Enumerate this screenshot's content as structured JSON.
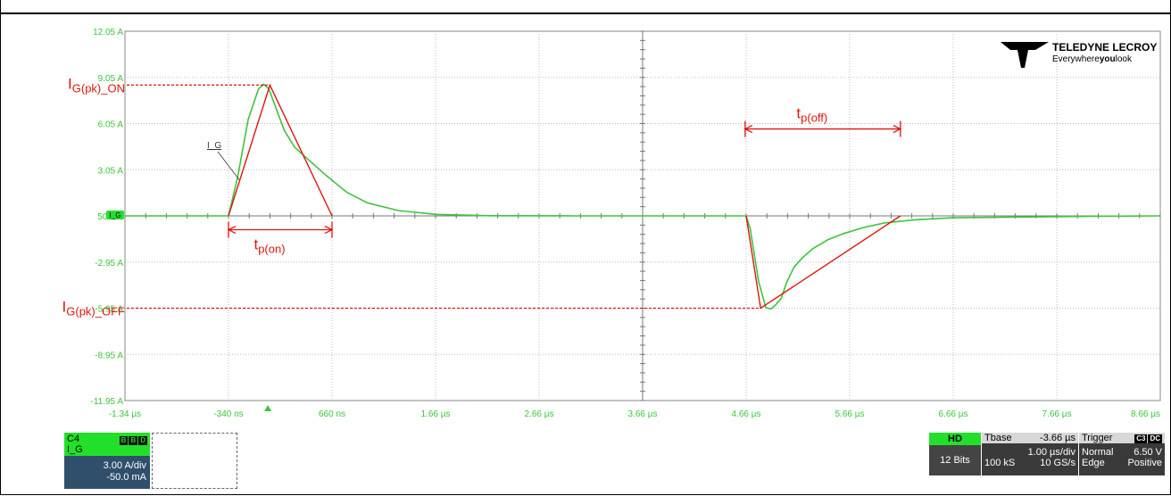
{
  "chart_data": {
    "type": "line",
    "title": "",
    "xlabel": "",
    "ylabel": "",
    "xlim": [
      -1.34,
      8.66
    ],
    "ylim": [
      -11.95,
      12.05
    ],
    "x_tick_labels": [
      "-1.34 µs",
      "-340 ns",
      "660 ns",
      "1.66 µs",
      "2.66 µs",
      "3.66 µs",
      "4.66 µs",
      "5.66 µs",
      "6.66 µs",
      "7.66 µs",
      "8.66 µs"
    ],
    "y_tick_labels": [
      "12.05 A",
      "9.05 A",
      "6.05 A",
      "3.05 A",
      "50 mA",
      "-2.95 A",
      "-5.95 A",
      "-8.95 A",
      "-11.95 A"
    ],
    "series": [
      {
        "name": "I_G",
        "color": "#3cc43c",
        "x": [
          -1.34,
          -0.6,
          -0.34,
          -0.25,
          -0.15,
          -0.05,
          0.0,
          0.05,
          0.1,
          0.2,
          0.3,
          0.45,
          0.6,
          0.8,
          1.0,
          1.3,
          1.66,
          2.2,
          3.0,
          4.0,
          4.66,
          4.7,
          4.78,
          4.85,
          4.9,
          4.95,
          5.0,
          5.05,
          5.12,
          5.2,
          5.3,
          5.45,
          5.6,
          5.8,
          6.0,
          6.3,
          6.66,
          7.2,
          8.0,
          8.66
        ],
        "y": [
          0.05,
          0.05,
          0.05,
          2.6,
          6.3,
          8.3,
          8.6,
          8.3,
          7.4,
          5.6,
          4.5,
          3.6,
          2.7,
          1.6,
          0.9,
          0.4,
          0.15,
          0.06,
          0.05,
          0.05,
          0.05,
          -0.8,
          -4.2,
          -5.9,
          -6.0,
          -5.7,
          -5.3,
          -4.3,
          -3.3,
          -2.7,
          -2.1,
          -1.5,
          -1.1,
          -0.7,
          -0.4,
          -0.2,
          -0.07,
          -0.03,
          0.02,
          0.05
        ]
      }
    ],
    "annotations": {
      "color": "#e0140c",
      "ig_pk_on": {
        "label": "I",
        "sub": "G(pk)_ON",
        "value": 8.55,
        "x_end": 0.06
      },
      "ig_pk_off": {
        "label": "I",
        "sub": "G(pk)_OFF",
        "value": -5.95,
        "x_end": 4.8
      },
      "tp_on": {
        "label": "t",
        "sub": "p(on)",
        "x_start": -0.34,
        "x_end": 0.66,
        "y": -0.85
      },
      "tp_off": {
        "label": "t",
        "sub": "p(off)",
        "x_start": 4.65,
        "x_end": 6.15,
        "y": 5.7
      },
      "triangle_on": [
        [
          -0.34,
          0.05
        ],
        [
          0.06,
          8.55
        ],
        [
          0.66,
          0.05
        ]
      ],
      "triangle_off": [
        [
          4.66,
          0.05
        ],
        [
          4.8,
          -5.95
        ],
        [
          6.15,
          0.05
        ]
      ]
    },
    "trace_label": "I_G",
    "marker_label": "I_G",
    "grid": true
  },
  "logo": {
    "brand": "TELEDYNE LECROY",
    "tagline_a": "Everywhere",
    "tagline_b": "you",
    "tagline_c": "look"
  },
  "channel": {
    "name": "C4",
    "badges": [
      "B",
      "B",
      "D"
    ],
    "trace": "I_G",
    "scale": "3.00 A/div",
    "offset": "-50.0 mA"
  },
  "acq": {
    "hd": "HD",
    "bits": "12 Bits"
  },
  "timebase": {
    "label": "Tbase",
    "offset": "-3.66 µs",
    "div": "1.00 µs/div",
    "samples": "100 kS",
    "rate": "10 GS/s"
  },
  "trigger": {
    "label": "Trigger",
    "badges": [
      "C3",
      "DC"
    ],
    "mode": "Normal",
    "level": "6.50 V",
    "type": "Edge",
    "slope": "Positive"
  }
}
